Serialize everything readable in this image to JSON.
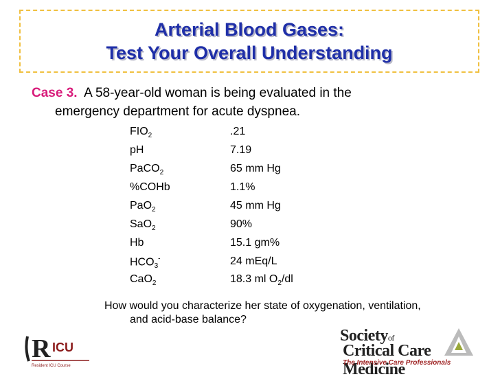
{
  "title": {
    "line1": "Arterial Blood Gases:",
    "line2": "Test Your Overall Understanding"
  },
  "case": {
    "label": "Case 3.",
    "text_line1": "A 58-year-old woman is being evaluated in the",
    "text_line2": "emergency department for acute dyspnea."
  },
  "values": [
    {
      "k1": "FIO",
      "k_sub": "2",
      "k_sup": "",
      "v1": ".21",
      "v_sub": "",
      "v2": ""
    },
    {
      "k1": "pH",
      "k_sub": "",
      "k_sup": "",
      "v1": "7.19",
      "v_sub": "",
      "v2": ""
    },
    {
      "k1": "PaCO",
      "k_sub": "2",
      "k_sup": "",
      "v1": "65 mm Hg",
      "v_sub": "",
      "v2": ""
    },
    {
      "k1": "%COHb",
      "k_sub": "",
      "k_sup": "",
      "v1": "1.1%",
      "v_sub": "",
      "v2": ""
    },
    {
      "k1": "PaO",
      "k_sub": "2",
      "k_sup": "",
      "v1": "45 mm Hg",
      "v_sub": "",
      "v2": ""
    },
    {
      "k1": "SaO",
      "k_sub": "2",
      "k_sup": "",
      "v1": "90%",
      "v_sub": "",
      "v2": ""
    },
    {
      "k1": "Hb",
      "k_sub": "",
      "k_sup": "",
      "v1": "15.1 gm%",
      "v_sub": "",
      "v2": ""
    },
    {
      "k1": "HCO",
      "k_sub": "3",
      "k_sup": "-",
      "v1": "24 mEq/L",
      "v_sub": "",
      "v2": ""
    },
    {
      "k1": "CaO",
      "k_sub": "2",
      "k_sup": "",
      "v1": "18.3 ml O",
      "v_sub": "2",
      "v2": "/dl"
    }
  ],
  "question": {
    "line1": "How would you characterize her state of oxygenation, ventilation,",
    "line2": "and acid-base balance?"
  },
  "logos": {
    "left_caption": "Resident ICU Course",
    "right_line1": "Society",
    "right_of": "of",
    "right_line2": "Critical Care Medicine",
    "right_tagline": "The Intensive Care Professionals"
  }
}
